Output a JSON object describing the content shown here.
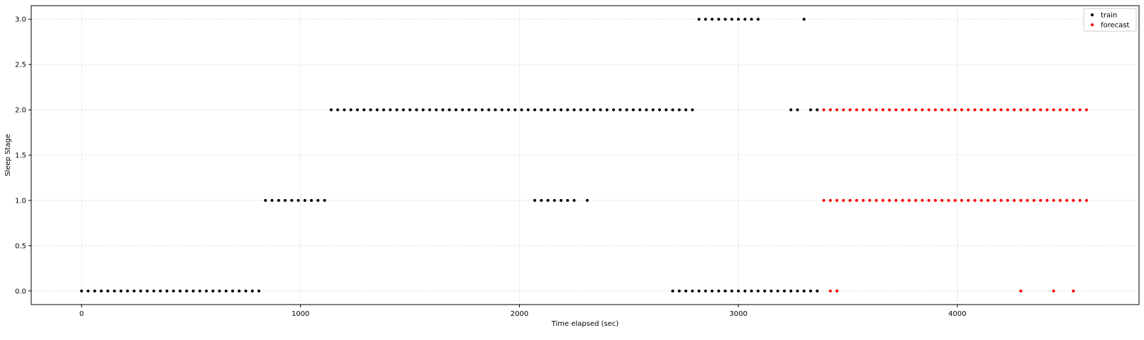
{
  "chart_data": {
    "type": "scatter",
    "title": "",
    "xlabel": "Time elapsed (sec)",
    "ylabel": "Sleep Stage",
    "xlim": [
      -230,
      4830
    ],
    "ylim": [
      -0.15,
      3.15
    ],
    "xticks": [
      0,
      1000,
      2000,
      3000,
      4000
    ],
    "xtick_labels": [
      "0",
      "1000",
      "2000",
      "3000",
      "4000"
    ],
    "yticks": [
      0,
      0.5,
      1,
      1.5,
      2,
      2.5,
      3
    ],
    "ytick_labels": [
      "0.0",
      "0.5",
      "1.0",
      "1.5",
      "2.0",
      "2.5",
      "3.0"
    ],
    "grid": true,
    "legend_position": "top-right",
    "series": [
      {
        "name": "train",
        "color": "#000000",
        "points": [
          {
            "start": 0,
            "end": 810,
            "step": 30,
            "y": 0
          },
          {
            "start": 840,
            "end": 1110,
            "step": 30,
            "y": 1
          },
          {
            "start": 1140,
            "end": 2790,
            "step": 30,
            "y": 2
          },
          {
            "start": 2070,
            "end": 2250,
            "step": 30,
            "y": 1
          },
          {
            "start": 2310,
            "end": 2310,
            "step": 30,
            "y": 1
          },
          {
            "start": 2700,
            "end": 3360,
            "step": 30,
            "y": 0
          },
          {
            "start": 2820,
            "end": 3090,
            "step": 30,
            "y": 3
          },
          {
            "start": 3300,
            "end": 3300,
            "step": 30,
            "y": 3
          },
          {
            "start": 3240,
            "end": 3270,
            "step": 30,
            "y": 2
          },
          {
            "start": 3330,
            "end": 3360,
            "step": 30,
            "y": 2
          }
        ]
      },
      {
        "name": "forecast",
        "color": "#ff0000",
        "points": [
          {
            "start": 3390,
            "end": 4590,
            "step": 30,
            "y": 2
          },
          {
            "start": 3390,
            "end": 4590,
            "step": 30,
            "y": 1
          },
          {
            "start": 3420,
            "end": 3450,
            "step": 30,
            "y": 0
          },
          {
            "start": 4290,
            "end": 4290,
            "step": 30,
            "y": 0
          },
          {
            "start": 4440,
            "end": 4440,
            "step": 30,
            "y": 0
          },
          {
            "start": 4530,
            "end": 4530,
            "step": 30,
            "y": 0
          }
        ]
      }
    ]
  }
}
